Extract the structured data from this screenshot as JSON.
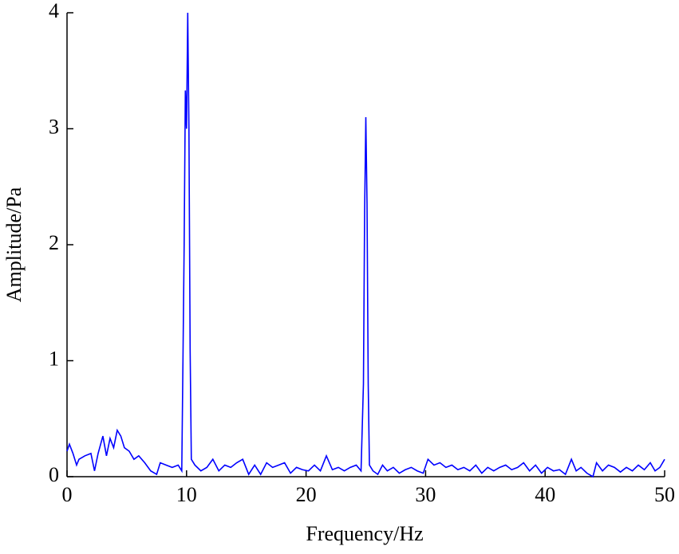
{
  "chart_data": {
    "type": "line",
    "xlabel": "Frequency/Hz",
    "ylabel": "Amplitude/Pa",
    "xlim": [
      0,
      50
    ],
    "ylim": [
      0,
      4
    ],
    "xticks": [
      0,
      10,
      20,
      30,
      40,
      50
    ],
    "yticks": [
      0,
      1,
      2,
      3,
      4
    ],
    "series": [
      {
        "color": "#0000ff",
        "x": [
          0,
          0.2,
          0.5,
          0.8,
          1,
          1.5,
          2,
          2.3,
          2.6,
          3,
          3.3,
          3.6,
          3.9,
          4.2,
          4.5,
          4.8,
          5.2,
          5.6,
          6,
          6.5,
          7,
          7.5,
          7.8,
          8.3,
          8.8,
          9.3,
          9.6,
          9.7,
          9.8,
          9.9,
          10.0,
          10.1,
          10.2,
          10.3,
          10.4,
          10.7,
          11.2,
          11.7,
          12.2,
          12.7,
          13.2,
          13.7,
          14.2,
          14.7,
          15.2,
          15.7,
          16.2,
          16.7,
          17.2,
          17.7,
          18.2,
          18.7,
          19.2,
          19.7,
          20.2,
          20.7,
          21.2,
          21.7,
          22.2,
          22.7,
          23.2,
          23.7,
          24.2,
          24.6,
          24.8,
          24.9,
          25.0,
          25.1,
          25.2,
          25.3,
          25.6,
          26,
          26.4,
          26.8,
          27.3,
          27.8,
          28.3,
          28.8,
          29.3,
          29.8,
          30.2,
          30.7,
          31.2,
          31.7,
          32.2,
          32.7,
          33.2,
          33.7,
          34.2,
          34.7,
          35.2,
          35.7,
          36.2,
          36.7,
          37.2,
          37.7,
          38.2,
          38.7,
          39.2,
          39.7,
          40.2,
          40.7,
          41.2,
          41.7,
          42.2,
          42.6,
          43,
          43.5,
          44,
          44.3,
          44.8,
          45.3,
          45.8,
          46.3,
          46.8,
          47.3,
          47.8,
          48.3,
          48.8,
          49.2,
          49.6,
          50
        ],
        "values": [
          0.22,
          0.28,
          0.2,
          0.1,
          0.15,
          0.18,
          0.2,
          0.05,
          0.2,
          0.35,
          0.18,
          0.33,
          0.25,
          0.4,
          0.35,
          0.25,
          0.22,
          0.15,
          0.18,
          0.12,
          0.05,
          0.02,
          0.12,
          0.1,
          0.08,
          0.1,
          0.05,
          1.0,
          2.0,
          3.33,
          3.0,
          4.0,
          3.0,
          1.1,
          0.15,
          0.1,
          0.05,
          0.08,
          0.15,
          0.05,
          0.1,
          0.08,
          0.12,
          0.15,
          0.02,
          0.1,
          0.02,
          0.12,
          0.08,
          0.1,
          0.12,
          0.03,
          0.08,
          0.06,
          0.05,
          0.1,
          0.05,
          0.18,
          0.06,
          0.08,
          0.05,
          0.08,
          0.1,
          0.05,
          0.8,
          2.3,
          3.1,
          2.35,
          0.8,
          0.1,
          0.05,
          0.02,
          0.1,
          0.05,
          0.08,
          0.03,
          0.06,
          0.08,
          0.05,
          0.03,
          0.15,
          0.1,
          0.12,
          0.08,
          0.1,
          0.06,
          0.08,
          0.05,
          0.1,
          0.03,
          0.08,
          0.05,
          0.08,
          0.1,
          0.06,
          0.08,
          0.12,
          0.05,
          0.1,
          0.03,
          0.08,
          0.05,
          0.06,
          0.02,
          0.15,
          0.05,
          0.08,
          0.03,
          0.0,
          0.12,
          0.05,
          0.1,
          0.08,
          0.04,
          0.08,
          0.05,
          0.1,
          0.06,
          0.12,
          0.05,
          0.08,
          0.15
        ]
      }
    ]
  }
}
